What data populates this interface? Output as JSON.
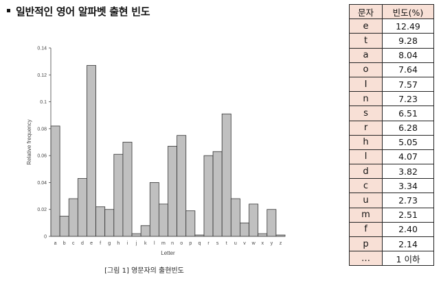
{
  "heading": "일반적인 영어 알파벳 출현 빈도",
  "caption": "[그림 1] 영문자의 출현빈도",
  "table": {
    "headers": [
      "문자",
      "빈도(%)"
    ],
    "rows": [
      {
        "letter": "e",
        "value": "12.49"
      },
      {
        "letter": "t",
        "value": "9.28"
      },
      {
        "letter": "a",
        "value": "8.04"
      },
      {
        "letter": "o",
        "value": "7.64"
      },
      {
        "letter": "I",
        "value": "7.57"
      },
      {
        "letter": "n",
        "value": "7.23"
      },
      {
        "letter": "s",
        "value": "6.51"
      },
      {
        "letter": "r",
        "value": "6.28"
      },
      {
        "letter": "h",
        "value": "5.05"
      },
      {
        "letter": "l",
        "value": "4.07"
      },
      {
        "letter": "d",
        "value": "3.82"
      },
      {
        "letter": "c",
        "value": "3.34"
      },
      {
        "letter": "u",
        "value": "2.73"
      },
      {
        "letter": "m",
        "value": "2.51"
      },
      {
        "letter": "f",
        "value": "2.40"
      },
      {
        "letter": "p",
        "value": "2.14"
      },
      {
        "letter": "…",
        "value": "1 이하"
      }
    ]
  },
  "chart_data": {
    "type": "bar",
    "xlabel": "Letter",
    "ylabel": "Relative frequency",
    "ylim": [
      0,
      0.14
    ],
    "yticks": [
      "0",
      "0.02",
      "0.04",
      "0.06",
      "0.08",
      "0.1",
      "0.12",
      "0.14"
    ],
    "categories": [
      "a",
      "b",
      "c",
      "d",
      "e",
      "f",
      "g",
      "h",
      "i",
      "j",
      "k",
      "l",
      "m",
      "n",
      "o",
      "p",
      "q",
      "r",
      "s",
      "t",
      "u",
      "v",
      "w",
      "x",
      "y",
      "z"
    ],
    "values": [
      0.082,
      0.015,
      0.028,
      0.043,
      0.127,
      0.022,
      0.02,
      0.061,
      0.07,
      0.002,
      0.008,
      0.04,
      0.024,
      0.067,
      0.075,
      0.019,
      0.001,
      0.06,
      0.063,
      0.091,
      0.028,
      0.01,
      0.024,
      0.002,
      0.02,
      0.001
    ],
    "bar_color": "#c0c0c0",
    "bar_edge_color": "#333333",
    "grid": false
  }
}
